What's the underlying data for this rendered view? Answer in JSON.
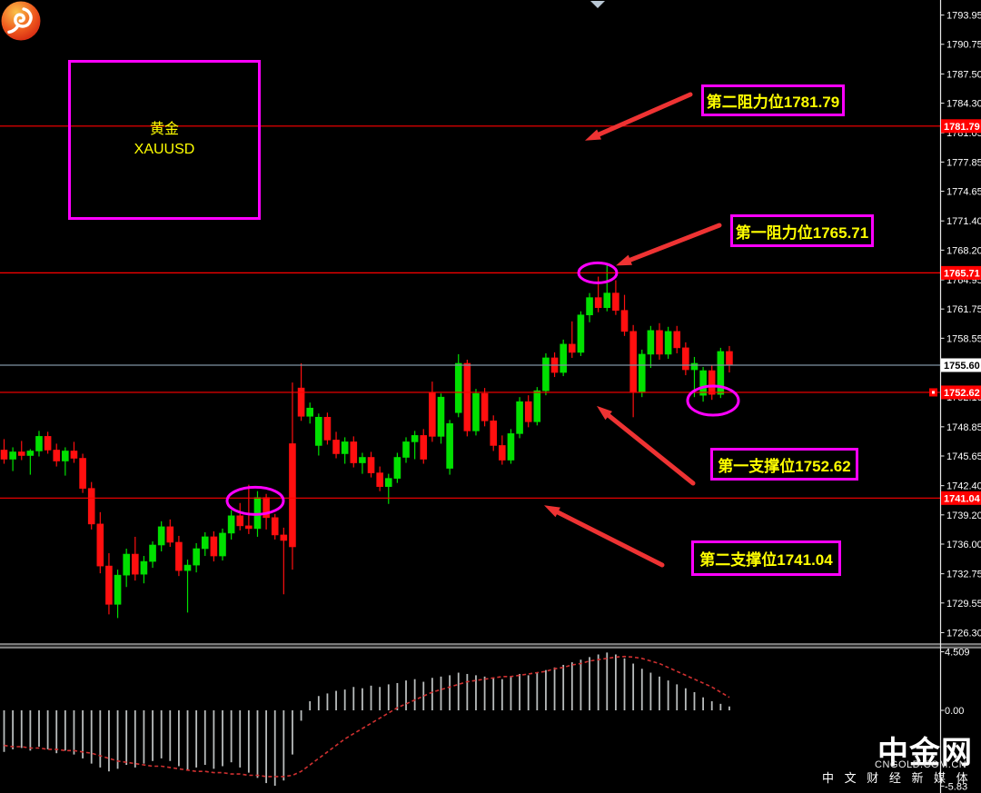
{
  "chart_data": {
    "type": "candlestick",
    "symbol": "XAUUSD",
    "symbol_cn": "黄金",
    "current_price": {
      "value": 1755.6,
      "tag": "1755.60"
    },
    "levels": [
      {
        "id": "second-resistance",
        "price": 1781.79,
        "tag": "1781.79",
        "annotation": "第二阻力位1781.79"
      },
      {
        "id": "first-resistance",
        "price": 1765.71,
        "tag": "1765.71",
        "annotation": "第一阻力位1765.71"
      },
      {
        "id": "first-support",
        "price": 1752.62,
        "tag": "1752.62",
        "annotation": "第一支撑位1752.62",
        "end_marker": true
      },
      {
        "id": "second-support",
        "price": 1741.04,
        "tag": "1741.04",
        "annotation": "第二支撑位1741.04"
      }
    ],
    "price_axis_ticks": [
      "1793.95",
      "1790.75",
      "1787.50",
      "1784.30",
      "1781.05",
      "1777.85",
      "1774.65",
      "1771.40",
      "1768.20",
      "1764.95",
      "1761.75",
      "1758.55",
      "1755.35",
      "1752.10",
      "1748.85",
      "1745.65",
      "1742.40",
      "1739.20",
      "1736.00",
      "1732.75",
      "1729.55",
      "1726.30"
    ],
    "indicator_axis_ticks": [
      "4.509",
      "0.00",
      "-5.83"
    ],
    "candles": [
      [
        1746.3,
        1747.5,
        1744.8,
        1745.3
      ],
      [
        1745.3,
        1746.6,
        1744.0,
        1746.1
      ],
      [
        1746.1,
        1747.3,
        1745.2,
        1745.7
      ],
      [
        1745.7,
        1746.4,
        1743.6,
        1746.2
      ],
      [
        1746.2,
        1748.4,
        1745.6,
        1747.8
      ],
      [
        1747.8,
        1748.3,
        1745.9,
        1746.3
      ],
      [
        1746.3,
        1747.0,
        1744.5,
        1745.1
      ],
      [
        1745.1,
        1746.6,
        1743.5,
        1746.2
      ],
      [
        1746.2,
        1747.2,
        1744.9,
        1745.4
      ],
      [
        1745.4,
        1745.9,
        1741.6,
        1742.1
      ],
      [
        1742.1,
        1742.8,
        1737.6,
        1738.2
      ],
      [
        1738.2,
        1739.5,
        1732.8,
        1733.6
      ],
      [
        1733.6,
        1735.0,
        1728.3,
        1729.4
      ],
      [
        1729.4,
        1733.2,
        1727.9,
        1732.6
      ],
      [
        1732.6,
        1735.5,
        1731.3,
        1734.9
      ],
      [
        1734.9,
        1736.8,
        1732.0,
        1732.7
      ],
      [
        1732.7,
        1734.7,
        1731.7,
        1734.1
      ],
      [
        1734.1,
        1736.3,
        1733.4,
        1735.9
      ],
      [
        1735.9,
        1738.5,
        1735.2,
        1737.9
      ],
      [
        1737.9,
        1738.7,
        1735.7,
        1736.2
      ],
      [
        1736.2,
        1736.9,
        1732.5,
        1733.1
      ],
      [
        1733.1,
        1734.3,
        1728.5,
        1733.7
      ],
      [
        1733.7,
        1736.1,
        1732.9,
        1735.5
      ],
      [
        1735.5,
        1737.3,
        1734.7,
        1736.8
      ],
      [
        1736.8,
        1737.4,
        1734.1,
        1734.7
      ],
      [
        1734.7,
        1737.7,
        1734.2,
        1737.2
      ],
      [
        1737.2,
        1739.7,
        1736.5,
        1739.1
      ],
      [
        1739.1,
        1740.5,
        1737.5,
        1738.0
      ],
      [
        1738.0,
        1742.5,
        1737.1,
        1737.7
      ],
      [
        1737.7,
        1741.8,
        1736.8,
        1741.1
      ],
      [
        1741.1,
        1741.5,
        1737.6,
        1738.9
      ],
      [
        1738.9,
        1739.3,
        1736.5,
        1737.0
      ],
      [
        1737.0,
        1737.8,
        1730.5,
        1736.4
      ],
      [
        1747.0,
        1753.7,
        1733.2,
        1735.7
      ],
      [
        1753.1,
        1755.8,
        1749.5,
        1750.0
      ],
      [
        1750.0,
        1751.5,
        1749.2,
        1750.9
      ],
      [
        1746.8,
        1750.3,
        1745.7,
        1749.9
      ],
      [
        1749.9,
        1750.4,
        1746.9,
        1747.4
      ],
      [
        1747.4,
        1748.3,
        1745.4,
        1745.9
      ],
      [
        1745.9,
        1747.7,
        1744.8,
        1747.2
      ],
      [
        1747.2,
        1747.8,
        1744.4,
        1744.9
      ],
      [
        1744.9,
        1746.0,
        1743.7,
        1745.5
      ],
      [
        1745.5,
        1746.1,
        1743.3,
        1743.8
      ],
      [
        1743.8,
        1744.5,
        1741.8,
        1742.3
      ],
      [
        1742.3,
        1743.7,
        1740.4,
        1743.2
      ],
      [
        1743.2,
        1746.0,
        1742.7,
        1745.5
      ],
      [
        1745.5,
        1747.7,
        1744.9,
        1747.2
      ],
      [
        1747.2,
        1748.4,
        1745.3,
        1747.9
      ],
      [
        1747.9,
        1748.6,
        1744.8,
        1745.3
      ],
      [
        1752.6,
        1753.8,
        1747.2,
        1747.8
      ],
      [
        1747.8,
        1752.5,
        1747.0,
        1752.1
      ],
      [
        1744.3,
        1749.6,
        1743.6,
        1749.2
      ],
      [
        1750.4,
        1756.8,
        1749.9,
        1755.8
      ],
      [
        1755.8,
        1756.2,
        1747.8,
        1748.4
      ],
      [
        1748.4,
        1753.0,
        1747.9,
        1752.5
      ],
      [
        1752.5,
        1753.1,
        1748.9,
        1749.5
      ],
      [
        1749.5,
        1750.1,
        1746.2,
        1746.8
      ],
      [
        1746.8,
        1747.9,
        1744.7,
        1745.2
      ],
      [
        1745.2,
        1748.6,
        1744.8,
        1748.1
      ],
      [
        1748.1,
        1752.1,
        1747.6,
        1751.6
      ],
      [
        1751.6,
        1752.3,
        1748.8,
        1749.4
      ],
      [
        1749.4,
        1753.2,
        1749.0,
        1752.8
      ],
      [
        1752.8,
        1756.9,
        1752.3,
        1756.4
      ],
      [
        1756.4,
        1757.0,
        1754.3,
        1754.8
      ],
      [
        1754.8,
        1758.4,
        1754.4,
        1757.9
      ],
      [
        1757.9,
        1760.4,
        1756.4,
        1757.0
      ],
      [
        1757.0,
        1761.5,
        1756.6,
        1761.1
      ],
      [
        1761.1,
        1763.5,
        1760.3,
        1763.0
      ],
      [
        1763.0,
        1765.3,
        1761.4,
        1761.9
      ],
      [
        1761.9,
        1766.8,
        1761.5,
        1763.5
      ],
      [
        1763.5,
        1764.9,
        1761.1,
        1761.6
      ],
      [
        1761.6,
        1763.3,
        1758.8,
        1759.3
      ],
      [
        1759.3,
        1760.0,
        1749.9,
        1752.6
      ],
      [
        1752.6,
        1757.3,
        1752.1,
        1756.8
      ],
      [
        1756.8,
        1759.9,
        1755.3,
        1759.4
      ],
      [
        1759.4,
        1760.2,
        1756.2,
        1756.8
      ],
      [
        1756.8,
        1759.8,
        1756.3,
        1759.3
      ],
      [
        1759.3,
        1759.9,
        1756.9,
        1757.5
      ],
      [
        1757.5,
        1758.1,
        1754.5,
        1755.1
      ],
      [
        1755.1,
        1756.5,
        1752.1,
        1755.8
      ],
      [
        1752.3,
        1755.4,
        1751.6,
        1755.0
      ],
      [
        1755.0,
        1755.6,
        1751.8,
        1752.4
      ],
      [
        1752.4,
        1757.5,
        1752.0,
        1757.1
      ],
      [
        1757.1,
        1757.7,
        1754.8,
        1755.6
      ]
    ],
    "macd": {
      "histogram": [
        -3.2,
        -3.0,
        -2.9,
        -3.1,
        -2.8,
        -3.0,
        -3.3,
        -3.1,
        -3.4,
        -3.7,
        -4.1,
        -4.4,
        -4.7,
        -4.5,
        -4.2,
        -4.4,
        -4.1,
        -3.9,
        -3.7,
        -3.9,
        -4.3,
        -4.6,
        -4.4,
        -4.2,
        -4.5,
        -4.3,
        -4.0,
        -4.4,
        -4.8,
        -5.2,
        -5.6,
        -5.8,
        -5.4,
        -3.4,
        -0.8,
        0.7,
        1.1,
        1.3,
        1.5,
        1.6,
        1.8,
        1.7,
        1.9,
        1.8,
        2.0,
        2.1,
        2.3,
        2.4,
        2.2,
        2.5,
        2.6,
        2.7,
        2.9,
        2.8,
        2.7,
        2.6,
        2.5,
        2.4,
        2.6,
        2.8,
        2.7,
        2.9,
        3.1,
        3.3,
        3.5,
        3.7,
        3.9,
        4.1,
        4.3,
        4.45,
        4.3,
        4.0,
        3.6,
        3.2,
        2.9,
        2.6,
        2.3,
        2.0,
        1.7,
        1.4,
        1.0,
        0.7,
        0.5,
        0.3
      ],
      "signal": [
        -2.7,
        -2.8,
        -2.8,
        -2.9,
        -2.9,
        -3.0,
        -3.0,
        -3.1,
        -3.1,
        -3.2,
        -3.3,
        -3.5,
        -3.7,
        -3.9,
        -4.0,
        -4.1,
        -4.2,
        -4.3,
        -4.3,
        -4.4,
        -4.5,
        -4.6,
        -4.7,
        -4.7,
        -4.8,
        -4.8,
        -4.9,
        -4.9,
        -5.0,
        -5.0,
        -5.1,
        -5.1,
        -5.1,
        -5.0,
        -4.7,
        -4.2,
        -3.7,
        -3.2,
        -2.7,
        -2.2,
        -1.8,
        -1.4,
        -1.0,
        -0.6,
        -0.2,
        0.2,
        0.5,
        0.8,
        1.1,
        1.4,
        1.6,
        1.8,
        2.0,
        2.2,
        2.3,
        2.4,
        2.5,
        2.6,
        2.6,
        2.7,
        2.8,
        2.9,
        3.0,
        3.2,
        3.3,
        3.5,
        3.6,
        3.8,
        3.9,
        4.0,
        4.1,
        4.15,
        4.1,
        4.0,
        3.8,
        3.6,
        3.3,
        3.0,
        2.7,
        2.4,
        2.1,
        1.8,
        1.4,
        1.0
      ],
      "scale_top": "4.509",
      "scale_zero": "0.00",
      "scale_bottom": "-5.83"
    },
    "colors": {
      "bull": "#00e000",
      "bear": "#ff0f0f",
      "level_line": "#ff0000",
      "current_line": "#7f92a3",
      "annotation_box": "#ff00ff",
      "annotation_text": "#ffff00",
      "arrow": "#ee3333",
      "macd_bar": "#b9bdbd",
      "macd_signal": "#d03030",
      "tag_bg": "#ff0000",
      "tag_text": "#ffffff",
      "current_tag_bg": "#ffffff",
      "current_tag_text": "#000000",
      "axis_text": "#ffffff"
    },
    "legend_position": "none",
    "grid": false
  },
  "logo": {
    "title": "中金网",
    "domain": "CNGOLD.COM.CN",
    "tagline": "中 文 财 经 新 媒 体"
  }
}
